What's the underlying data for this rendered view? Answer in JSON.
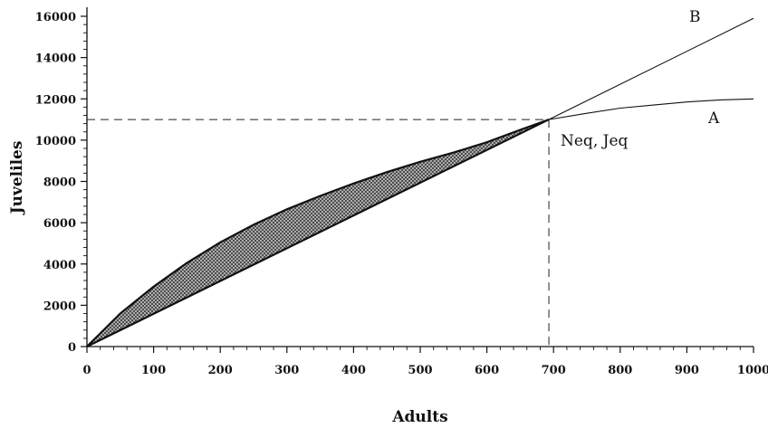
{
  "chart_data": {
    "type": "line",
    "xlabel": "Adults",
    "ylabel": "Juveliles",
    "xlim": [
      0,
      1000
    ],
    "ylim": [
      0,
      16000
    ],
    "x_ticks": [
      0,
      100,
      200,
      300,
      400,
      500,
      600,
      700,
      800,
      900,
      1000
    ],
    "y_ticks": [
      0,
      2000,
      4000,
      6000,
      8000,
      10000,
      12000,
      14000,
      16000
    ],
    "series": [
      {
        "name": "A",
        "x": [
          0,
          50,
          100,
          150,
          200,
          250,
          300,
          350,
          400,
          450,
          500,
          550,
          600,
          650,
          693,
          750,
          800,
          850,
          900,
          950,
          1000
        ],
        "y": [
          0,
          1600,
          2900,
          4050,
          5050,
          5900,
          6650,
          7300,
          7900,
          8450,
          8950,
          9400,
          9900,
          10500,
          11000,
          11300,
          11550,
          11700,
          11850,
          11950,
          12000
        ]
      },
      {
        "name": "B",
        "x": [
          0,
          693,
          1000
        ],
        "y": [
          0,
          11000,
          15900
        ]
      }
    ],
    "equilibrium": {
      "x": 693,
      "y": 11000,
      "label": "Neq, Jeq"
    },
    "shaded_region": "between A and B from 0 to Neq",
    "grid": false
  }
}
